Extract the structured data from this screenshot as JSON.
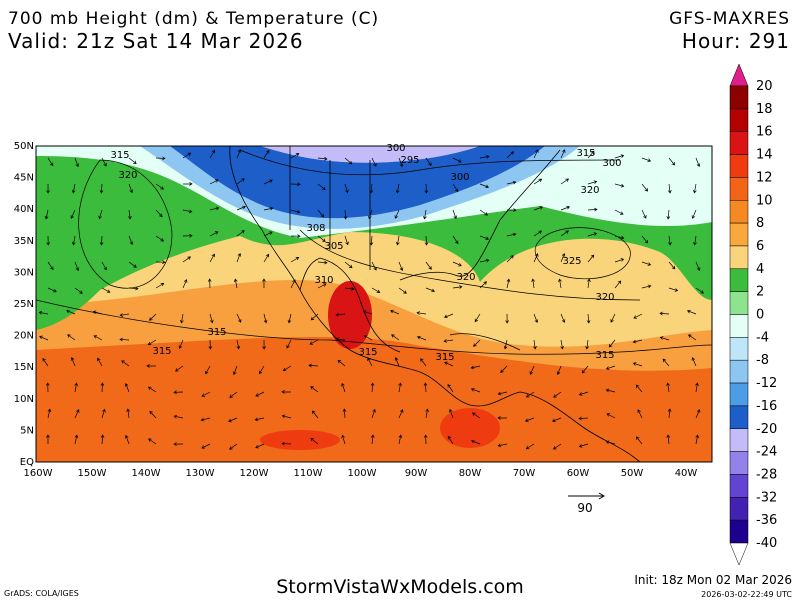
{
  "header": {
    "title": "700 mb Height (dm) & Temperature (C)",
    "valid": "Valid: 21z Sat 14 Mar 2026",
    "model": "GFS-MAXRES",
    "hour": "Hour: 291"
  },
  "axes": {
    "lat_labels": [
      "50N",
      "45N",
      "40N",
      "35N",
      "30N",
      "25N",
      "20N",
      "15N",
      "10N",
      "5N",
      "EQ"
    ],
    "lon_labels": [
      "160W",
      "150W",
      "140W",
      "130W",
      "120W",
      "110W",
      "100W",
      "90W",
      "80W",
      "70W",
      "60W",
      "50W",
      "40W"
    ]
  },
  "colorbar": {
    "labels": [
      20,
      18,
      16,
      14,
      12,
      10,
      8,
      6,
      4,
      2,
      0,
      -4,
      -8,
      -12,
      -16,
      -20,
      -24,
      -28,
      -32,
      -36,
      -40
    ],
    "colors": [
      "#e01e8c",
      "#8c0000",
      "#b40000",
      "#d81414",
      "#ee3c10",
      "#f26418",
      "#f58a22",
      "#f8a83c",
      "#fad47a",
      "#3cbc3c",
      "#8ee48e",
      "#e4fff6",
      "#bfe6f8",
      "#8ec6f2",
      "#4c9de6",
      "#1e5ec8",
      "#c4bcf8",
      "#9282ea",
      "#6244d2",
      "#4222b0",
      "#1e0090",
      "#ffffff"
    ]
  },
  "contour_labels": [
    315,
    320,
    300,
    295,
    300,
    315,
    300,
    320,
    308,
    305,
    310,
    320,
    325,
    320,
    315,
    315,
    315,
    315,
    315
  ],
  "vector_reference": 90,
  "footer": {
    "credit": "GrADS: COLA/IGES",
    "site": "StormVistaWxModels.com",
    "init": "Init: 18z Mon 02 Mar 2026",
    "stamp": "2026-03-02-22:49 UTC"
  }
}
